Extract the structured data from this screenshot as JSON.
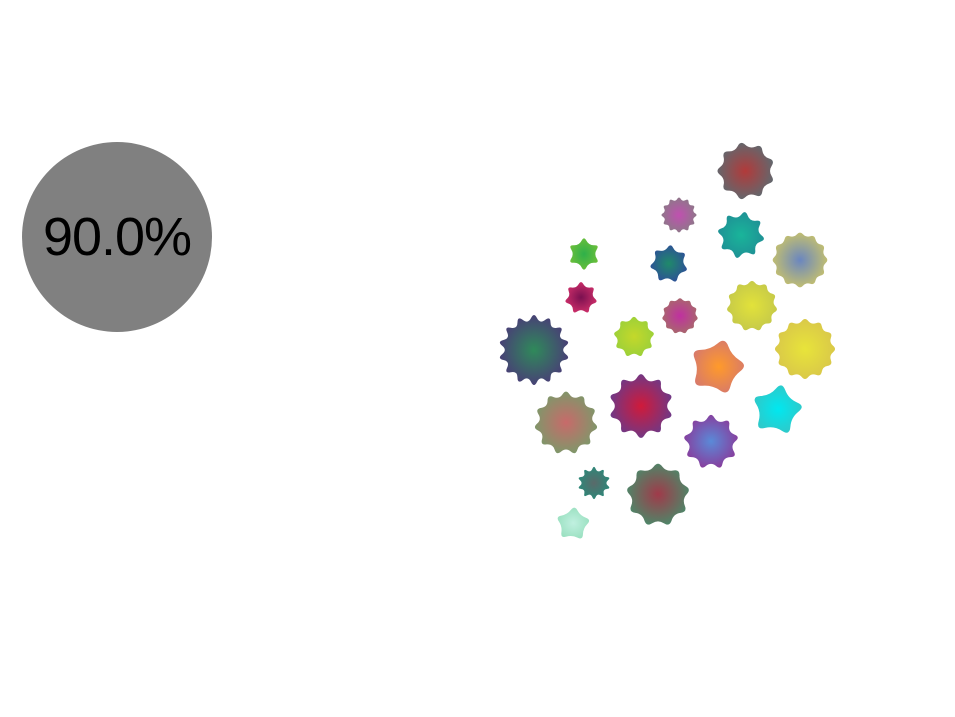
{
  "hud": {
    "progress_label": "90.0%",
    "progress_value": 0.9
  },
  "stars": [
    {
      "id": 1,
      "outer": "#5e6a70",
      "inner": "#b23a3a",
      "points": 9
    },
    {
      "id": 2,
      "outer": "#8a7a86",
      "inner": "#c050b0",
      "points": 12
    },
    {
      "id": 3,
      "outer": "#1f8f95",
      "inner": "#19b59a",
      "points": 8
    },
    {
      "id": 4,
      "outer": "#c9c36a",
      "inner": "#6a86c0",
      "points": 12
    },
    {
      "id": 5,
      "outer": "#6cbf3a",
      "inner": "#2fb04a",
      "points": 6
    },
    {
      "id": 6,
      "outer": "#2e4f98",
      "inner": "#1f8a6a",
      "points": 7
    },
    {
      "id": 7,
      "outer": "#cf2f6a",
      "inner": "#7a1050",
      "points": 7
    },
    {
      "id": 8,
      "outer": "#a76a6a",
      "inner": "#c030a0",
      "points": 11
    },
    {
      "id": 9,
      "outer": "#c4c84a",
      "inner": "#e2e23a",
      "points": 11
    },
    {
      "id": 10,
      "outer": "#4a3a78",
      "inner": "#2f8a5a",
      "points": 14
    },
    {
      "id": 11,
      "outer": "#9ad03a",
      "inner": "#c4d82a",
      "points": 9
    },
    {
      "id": 12,
      "outer": "#d8c64a",
      "inner": "#e8e43a",
      "points": 12
    },
    {
      "id": 13,
      "outer": "#d87a6a",
      "inner": "#ff9a2a",
      "points": 5
    },
    {
      "id": 14,
      "outer": "#6a3a8a",
      "inner": "#d01a3a",
      "points": 10
    },
    {
      "id": 15,
      "outer": "#30c8c8",
      "inner": "#00e8f0",
      "points": 5
    },
    {
      "id": 16,
      "outer": "#7a9a6a",
      "inner": "#c86a6a",
      "points": 11
    },
    {
      "id": 17,
      "outer": "#8a3a9a",
      "inner": "#5a8ad8",
      "points": 9
    },
    {
      "id": 18,
      "outer": "#2a8a7a",
      "inner": "#5a6a6a",
      "points": 10
    },
    {
      "id": 19,
      "outer": "#4a8a6a",
      "inner": "#a03a4a",
      "points": 9
    },
    {
      "id": 20,
      "outer": "#9ae0c0",
      "inner": "#c0f0e0",
      "points": 5
    }
  ]
}
